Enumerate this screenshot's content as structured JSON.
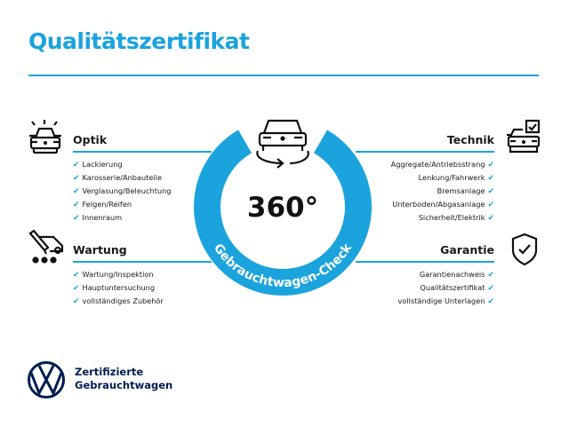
{
  "title": "Qualitätszertifikat",
  "colors": {
    "accent": "#1ba3dd",
    "brand_navy": "#001e50"
  },
  "badge": {
    "value": "360°",
    "label": "Gebrauchtwagen-Check",
    "icon": "car-rotate-icon"
  },
  "sections": {
    "optik": {
      "heading": "Optik",
      "icon": "car-lights-icon",
      "items": [
        "Lackierung",
        "Karosserie/Anbauteile",
        "Verglasung/Beleuchtung",
        "Felgen/Reifen",
        "Innenraum"
      ]
    },
    "wartung": {
      "heading": "Wartung",
      "icon": "tools-van-icon",
      "items": [
        "Wartung/Inspektion",
        "Hauptuntersuchung",
        "vollständiges Zubehör"
      ]
    },
    "technik": {
      "heading": "Technik",
      "icon": "car-checkbox-icon",
      "items": [
        "Aggregate/Antriebsstrang",
        "Lenkung/Fahrwerk",
        "Bremsanlage",
        "Unterboden/Abgasanlage",
        "Sicherheit/Elektrik"
      ]
    },
    "garantie": {
      "heading": "Garantie",
      "icon": "shield-check-icon",
      "items": [
        "Garantienachweis",
        "Qualitätszertifikat",
        "vollständige Unterlagen"
      ]
    }
  },
  "check_glyph": "✔",
  "footer": {
    "line1": "Zertifizierte",
    "line2": "Gebrauchtwagen",
    "logo": "vw-logo"
  }
}
